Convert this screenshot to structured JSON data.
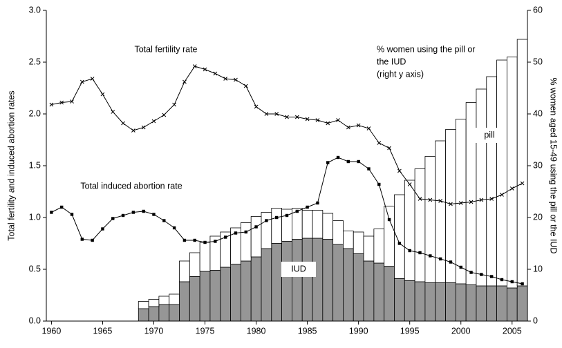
{
  "chart_data": {
    "type": "bar-line",
    "ylabel": "Total fertility and induced abortion rates",
    "y2label": "% women aged 15-49 using the pill or the IUD",
    "x": [
      1960,
      1961,
      1962,
      1963,
      1964,
      1965,
      1966,
      1967,
      1968,
      1969,
      1970,
      1971,
      1972,
      1973,
      1974,
      1975,
      1976,
      1977,
      1978,
      1979,
      1980,
      1981,
      1982,
      1983,
      1984,
      1985,
      1986,
      1987,
      1988,
      1989,
      1990,
      1991,
      1992,
      1993,
      1994,
      1995,
      1996,
      1997,
      1998,
      1999,
      2000,
      2001,
      2002,
      2003,
      2004,
      2005,
      2006
    ],
    "xlim": [
      1959.5,
      2006.5
    ],
    "xticks": [
      1960,
      1965,
      1970,
      1975,
      1980,
      1985,
      1990,
      1995,
      2000,
      2005
    ],
    "ylim": [
      0,
      3
    ],
    "yticks": [
      {
        "value": 0,
        "label": "0.0"
      },
      {
        "value": 0.5,
        "label": "0.5"
      },
      {
        "value": 1,
        "label": "1.0"
      },
      {
        "value": 1.5,
        "label": "1.5"
      },
      {
        "value": 2,
        "label": "2.0"
      },
      {
        "value": 2.5,
        "label": "2.5"
      },
      {
        "value": 3,
        "label": "3.0"
      }
    ],
    "y2lim": [
      0,
      60
    ],
    "y2ticks": [
      0,
      10,
      20,
      30,
      40,
      50,
      60
    ],
    "series": [
      {
        "name": "IUD",
        "kind": "bar",
        "axis": "y2",
        "color": "#969696",
        "values": [
          null,
          null,
          null,
          null,
          null,
          null,
          null,
          null,
          null,
          2.4,
          2.8,
          3.2,
          3.2,
          7.6,
          8.6,
          9.6,
          9.8,
          10.4,
          11,
          11.6,
          12.4,
          14,
          15,
          15.4,
          15.8,
          16,
          16,
          15.8,
          14.8,
          14,
          13,
          11.6,
          11.2,
          10.6,
          8.2,
          7.8,
          7.6,
          7.4,
          7.4,
          7.4,
          7.2,
          7,
          6.8,
          6.8,
          6.8,
          6.4,
          6.8
        ]
      },
      {
        "name": "pill",
        "kind": "bar",
        "axis": "y2",
        "color": "#ffffff",
        "values": [
          null,
          null,
          null,
          null,
          null,
          null,
          null,
          null,
          null,
          1.4,
          1.4,
          1.6,
          2.0,
          4.0,
          4.6,
          5.6,
          6.6,
          6.8,
          7.0,
          7.4,
          7.8,
          7.0,
          6.8,
          6.2,
          6.0,
          5.4,
          5.4,
          5.0,
          4.6,
          3.4,
          4.2,
          4.8,
          6.6,
          11.6,
          16.2,
          19.4,
          21.8,
          24.4,
          27.4,
          29.6,
          31.8,
          35.2,
          38.0,
          40.4,
          43.6,
          44.6,
          47.6
        ]
      },
      {
        "name": "Total fertility rate",
        "kind": "line",
        "marker": "x",
        "color": "#000000",
        "values": [
          2.09,
          2.11,
          2.12,
          2.31,
          2.34,
          2.19,
          2.02,
          1.91,
          1.84,
          1.87,
          1.93,
          1.99,
          2.09,
          2.31,
          2.46,
          2.43,
          2.39,
          2.34,
          2.33,
          2.27,
          2.07,
          2.0,
          2.0,
          1.97,
          1.97,
          1.95,
          1.94,
          1.91,
          1.94,
          1.87,
          1.89,
          1.86,
          1.72,
          1.67,
          1.45,
          1.32,
          1.18,
          1.17,
          1.16,
          1.13,
          1.14,
          1.15,
          1.17,
          1.18,
          1.22,
          1.28,
          1.33
        ]
      },
      {
        "name": "Total induced abortion rate",
        "kind": "line",
        "marker": "square",
        "color": "#000000",
        "values": [
          1.05,
          1.1,
          1.03,
          0.79,
          0.78,
          0.89,
          0.99,
          1.02,
          1.05,
          1.06,
          1.03,
          0.97,
          0.9,
          0.78,
          0.78,
          0.76,
          0.77,
          0.81,
          0.85,
          0.86,
          0.91,
          0.97,
          1.0,
          1.02,
          1.06,
          1.1,
          1.14,
          1.53,
          1.58,
          1.54,
          1.54,
          1.47,
          1.32,
          0.98,
          0.75,
          0.68,
          0.66,
          0.63,
          0.6,
          0.57,
          0.52,
          0.47,
          0.45,
          0.43,
          0.4,
          0.38,
          0.36
        ]
      }
    ],
    "annotations": [
      [
        "% women using the pill or",
        "the IUD",
        "(right y axis)"
      ]
    ]
  }
}
